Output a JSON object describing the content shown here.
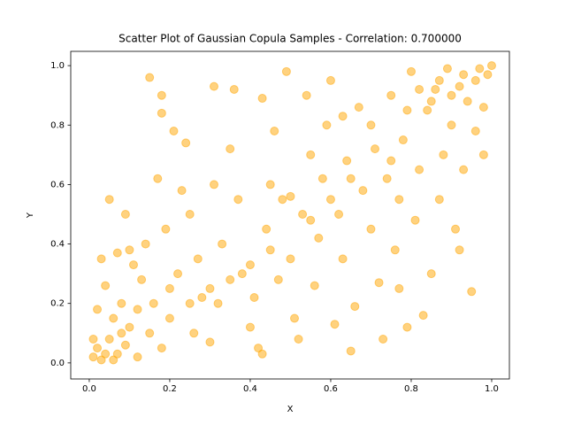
{
  "chart_data": {
    "type": "scatter",
    "title": "Scatter Plot of Gaussian Copula Samples - Correlation: 0.700000",
    "x_label": "X",
    "y_label": "Y",
    "color": "#ffa500",
    "xlim": [
      -0.046,
      1.044
    ],
    "ylim": [
      -0.054,
      1.048
    ],
    "xticks": [
      {
        "value": 0,
        "label": "0.0"
      },
      0.2,
      0.4,
      0.6,
      0.8,
      {
        "value": 1,
        "label": "1.0"
      }
    ],
    "yticks": [
      {
        "value": 0,
        "label": "0.0"
      },
      0.2,
      0.4,
      0.6,
      0.8,
      {
        "value": 1,
        "label": "1.0"
      }
    ],
    "x": [
      0.01,
      0.02,
      0.03,
      0.05,
      0.07,
      0.09,
      0.1,
      0.12,
      0.02,
      0.04,
      0.06,
      0.08,
      0.11,
      0.13,
      0.15,
      0.03,
      0.07,
      0.09,
      0.05,
      0.14,
      0.16,
      0.18,
      0.2,
      0.22,
      0.19,
      0.17,
      0.15,
      0.18,
      0.18,
      0.21,
      0.24,
      0.25,
      0.27,
      0.28,
      0.26,
      0.3,
      0.32,
      0.33,
      0.31,
      0.31,
      0.36,
      0.35,
      0.37,
      0.38,
      0.4,
      0.42,
      0.43,
      0.41,
      0.44,
      0.45,
      0.43,
      0.46,
      0.48,
      0.49,
      0.5,
      0.51,
      0.52,
      0.53,
      0.55,
      0.54,
      0.56,
      0.57,
      0.58,
      0.6,
      0.59,
      0.61,
      0.62,
      0.63,
      0.64,
      0.65,
      0.66,
      0.67,
      0.68,
      0.7,
      0.71,
      0.72,
      0.73,
      0.74,
      0.75,
      0.76,
      0.77,
      0.78,
      0.79,
      0.8,
      0.81,
      0.82,
      0.83,
      0.84,
      0.85,
      0.86,
      0.87,
      0.88,
      0.89,
      0.9,
      0.91,
      0.92,
      0.93,
      0.94,
      0.95,
      0.96,
      0.97,
      0.98,
      0.99,
      1.0,
      0.98,
      0.96,
      0.93,
      0.9,
      0.87,
      0.85,
      0.82,
      0.79,
      0.75,
      0.7,
      0.65,
      0.6,
      0.55,
      0.5,
      0.45,
      0.4,
      0.35,
      0.3,
      0.25,
      0.2,
      0.12,
      0.08,
      0.04,
      0.01,
      0.06,
      0.1,
      0.23,
      0.47,
      0.63,
      0.77,
      0.92
    ],
    "values": [
      0.02,
      0.05,
      0.01,
      0.08,
      0.03,
      0.06,
      0.12,
      0.02,
      0.18,
      0.26,
      0.15,
      0.2,
      0.33,
      0.28,
      0.1,
      0.35,
      0.37,
      0.5,
      0.55,
      0.4,
      0.2,
      0.05,
      0.15,
      0.3,
      0.45,
      0.62,
      0.96,
      0.9,
      0.84,
      0.78,
      0.74,
      0.5,
      0.35,
      0.22,
      0.1,
      0.07,
      0.2,
      0.4,
      0.6,
      0.93,
      0.92,
      0.72,
      0.55,
      0.3,
      0.12,
      0.05,
      0.03,
      0.22,
      0.45,
      0.6,
      0.89,
      0.78,
      0.55,
      0.98,
      0.35,
      0.15,
      0.08,
      0.5,
      0.7,
      0.9,
      0.26,
      0.42,
      0.62,
      0.95,
      0.8,
      0.13,
      0.5,
      0.35,
      0.68,
      0.04,
      0.19,
      0.86,
      0.58,
      0.45,
      0.72,
      0.27,
      0.08,
      0.62,
      0.9,
      0.38,
      0.55,
      0.75,
      0.12,
      0.98,
      0.48,
      0.65,
      0.16,
      0.85,
      0.3,
      0.92,
      0.55,
      0.7,
      0.99,
      0.8,
      0.45,
      0.93,
      0.65,
      0.88,
      0.24,
      0.95,
      0.99,
      0.86,
      0.97,
      1.0,
      0.7,
      0.78,
      0.97,
      0.9,
      0.95,
      0.88,
      0.92,
      0.85,
      0.68,
      0.8,
      0.62,
      0.55,
      0.48,
      0.56,
      0.38,
      0.33,
      0.28,
      0.25,
      0.2,
      0.25,
      0.18,
      0.1,
      0.03,
      0.08,
      0.01,
      0.38,
      0.58,
      0.28,
      0.83,
      0.25,
      0.38
    ]
  }
}
